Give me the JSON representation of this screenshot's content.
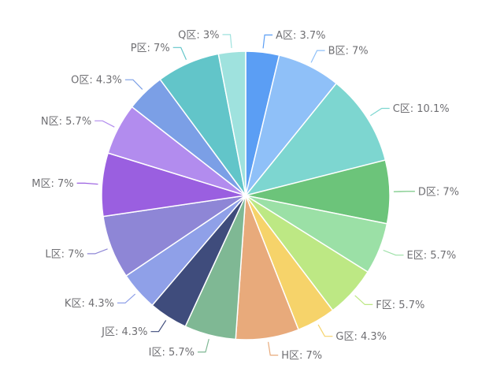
{
  "chart_data": {
    "type": "pie",
    "title": "",
    "start_angle_deg": 0,
    "direction": "clockwise",
    "legend": "none",
    "labels": [
      "A区",
      "B区",
      "C区",
      "D区",
      "E区",
      "F区",
      "G区",
      "H区",
      "I区",
      "J区",
      "K区",
      "L区",
      "M区",
      "N区",
      "O区",
      "P区",
      "Q区"
    ],
    "values": [
      3.7,
      7,
      10.1,
      7,
      5.7,
      5.7,
      4.3,
      7,
      5.7,
      4.3,
      4.3,
      7,
      7,
      5.7,
      4.3,
      7,
      3
    ],
    "display_labels": [
      "A区: 3.7%",
      "B区: 7%",
      "C区: 10.1%",
      "D区: 7%",
      "E区: 5.7%",
      "F区: 5.7%",
      "G区: 4.3%",
      "H区: 7%",
      "I区: 5.7%",
      "J区: 4.3%",
      "K区: 4.3%",
      "L区: 7%",
      "M区: 7%",
      "N区: 5.7%",
      "O区: 4.3%",
      "P区: 7%",
      "Q区: 3%"
    ],
    "colors": [
      "#5b9ef4",
      "#8fc0f8",
      "#7dd6d0",
      "#6cc47a",
      "#9be0a6",
      "#bde884",
      "#f6d36a",
      "#e8aa7b",
      "#7fb894",
      "#3f4c7c",
      "#8fa0e8",
      "#8e86d6",
      "#9a5fe0",
      "#b28cee",
      "#7b9fe6",
      "#62c5c9",
      "#9fe2de"
    ]
  }
}
